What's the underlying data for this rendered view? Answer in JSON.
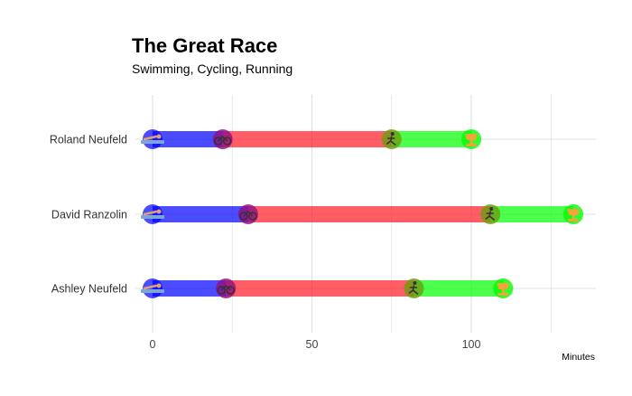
{
  "chart_data": {
    "type": "segmented-bar",
    "title": "The Great Race",
    "subtitle": "Swimming, Cycling, Running",
    "xlabel": "Minutes",
    "xlim": [
      -3,
      130
    ],
    "xticks": [
      0,
      50,
      100
    ],
    "grid": true,
    "stages": [
      {
        "name": "Swimming",
        "color": "#0000ff",
        "icon": "swimmer-icon"
      },
      {
        "name": "Cycling",
        "color": "#ff1a26",
        "icon": "bicycle-icon"
      },
      {
        "name": "Running",
        "color": "#00ff00",
        "icon": "runner-icon"
      }
    ],
    "finish_icon": "trophy-icon",
    "athletes": [
      {
        "name": "Roland Neufeld",
        "times": [
          0,
          22,
          75,
          100
        ]
      },
      {
        "name": "David Ranzolin",
        "times": [
          0,
          30,
          106,
          132
        ]
      },
      {
        "name": "Ashley Neufeld",
        "times": [
          0,
          23,
          82,
          110
        ]
      }
    ]
  }
}
